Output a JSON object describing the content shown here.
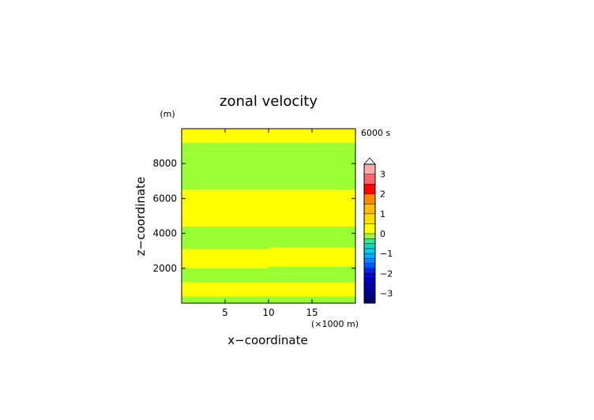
{
  "chart_data": {
    "type": "heatmap",
    "title": "zonal velocity",
    "time_label": "6000 s",
    "xlabel": "x−coordinate",
    "ylabel": "z−coordinate",
    "x_unit": "(×1000 m)",
    "y_unit": "(m)",
    "xlim": [
      0,
      20
    ],
    "ylim": [
      0,
      10000
    ],
    "x_ticks": [
      5,
      10,
      15
    ],
    "x_tick_labels": [
      "5",
      "10",
      "15"
    ],
    "y_ticks": [
      2000,
      4000,
      6000,
      8000
    ],
    "y_tick_labels": [
      "2000",
      "4000",
      "6000",
      "8000"
    ],
    "colors": {
      "positive_fill": "#ffff00",
      "negative_fill": "#99ff33",
      "background": "#ffffff"
    },
    "bands_left": [
      {
        "z_bottom": 0,
        "z_top": 400,
        "sign": "negative"
      },
      {
        "z_bottom": 400,
        "z_top": 1200,
        "sign": "positive"
      },
      {
        "z_bottom": 1200,
        "z_top": 2000,
        "sign": "negative"
      },
      {
        "z_bottom": 2000,
        "z_top": 3100,
        "sign": "positive"
      },
      {
        "z_bottom": 3100,
        "z_top": 4400,
        "sign": "negative"
      },
      {
        "z_bottom": 4400,
        "z_top": 6500,
        "sign": "positive"
      },
      {
        "z_bottom": 6500,
        "z_top": 9200,
        "sign": "negative"
      },
      {
        "z_bottom": 9200,
        "z_top": 10000,
        "sign": "positive"
      }
    ],
    "bands_right": [
      {
        "z_bottom": 0,
        "z_top": 400,
        "sign": "negative"
      },
      {
        "z_bottom": 400,
        "z_top": 1200,
        "sign": "positive"
      },
      {
        "z_bottom": 1200,
        "z_top": 2100,
        "sign": "negative"
      },
      {
        "z_bottom": 2100,
        "z_top": 3200,
        "sign": "positive"
      },
      {
        "z_bottom": 3200,
        "z_top": 4400,
        "sign": "negative"
      },
      {
        "z_bottom": 4400,
        "z_top": 6500,
        "sign": "positive"
      },
      {
        "z_bottom": 6500,
        "z_top": 9200,
        "sign": "negative"
      },
      {
        "z_bottom": 9200,
        "z_top": 10000,
        "sign": "positive"
      }
    ],
    "colorbar": {
      "range": [
        -3.5,
        3.5
      ],
      "levels": [
        {
          "from": -3.5,
          "to": -3.25,
          "color": "#000066"
        },
        {
          "from": -3.25,
          "to": -3.0,
          "color": "#000080"
        },
        {
          "from": -3.0,
          "to": -2.75,
          "color": "#000099"
        },
        {
          "from": -2.75,
          "to": -2.5,
          "color": "#0000b3"
        },
        {
          "from": -2.5,
          "to": -2.25,
          "color": "#0000cc"
        },
        {
          "from": -2.25,
          "to": -2.0,
          "color": "#0000e6"
        },
        {
          "from": -2.0,
          "to": -1.75,
          "color": "#0022ff"
        },
        {
          "from": -1.75,
          "to": -1.5,
          "color": "#0055ff"
        },
        {
          "from": -1.5,
          "to": -1.25,
          "color": "#0088ff"
        },
        {
          "from": -1.25,
          "to": -1.0,
          "color": "#00aaff"
        },
        {
          "from": -1.0,
          "to": -0.75,
          "color": "#00ccee"
        },
        {
          "from": -0.75,
          "to": -0.5,
          "color": "#00ddcc"
        },
        {
          "from": -0.5,
          "to": -0.25,
          "color": "#33ee88"
        },
        {
          "from": -0.25,
          "to": 0.0,
          "color": "#99ff33"
        },
        {
          "from": 0.0,
          "to": 0.5,
          "color": "#ffff00"
        },
        {
          "from": 0.5,
          "to": 1.0,
          "color": "#ffdd00"
        },
        {
          "from": 1.0,
          "to": 1.5,
          "color": "#ffbb00"
        },
        {
          "from": 1.5,
          "to": 2.0,
          "color": "#ff8800"
        },
        {
          "from": 2.0,
          "to": 2.5,
          "color": "#ff0000"
        },
        {
          "from": 2.5,
          "to": 3.0,
          "color": "#ff6666"
        },
        {
          "from": 3.0,
          "to": 3.5,
          "color": "#ffaaaa"
        }
      ],
      "ticks": [
        -3,
        -2,
        -1,
        0,
        1,
        2,
        3
      ],
      "tick_labels": [
        "−3",
        "−2",
        "−1",
        "0",
        "1",
        "2",
        "3"
      ],
      "extend": "max"
    }
  }
}
